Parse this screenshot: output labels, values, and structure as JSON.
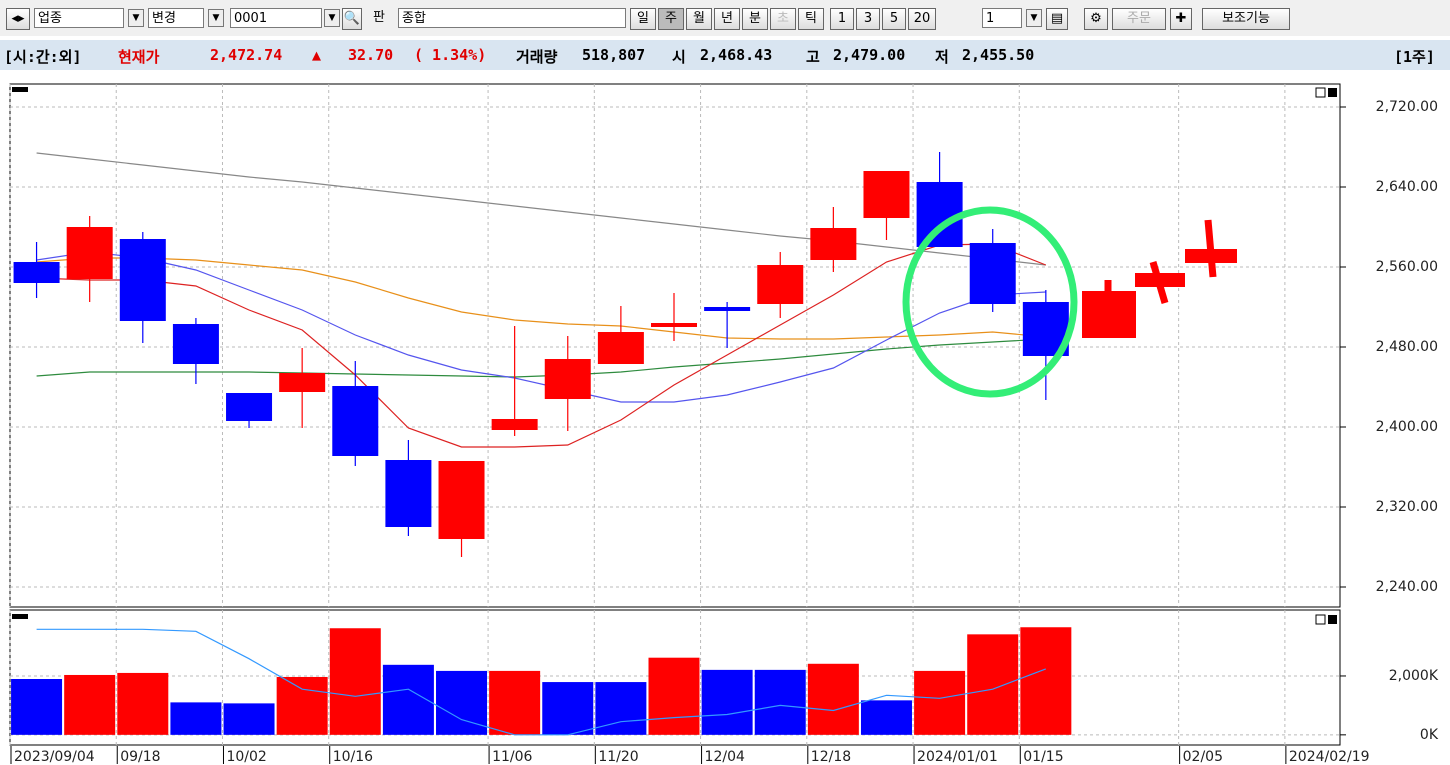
{
  "toolbar": {
    "market": "업종",
    "change": "변경",
    "code": "0001",
    "board": "판",
    "name": "종합",
    "buttons": [
      "일",
      "주",
      "월",
      "년",
      "분",
      "초",
      "틱",
      "1",
      "3",
      "5",
      "20"
    ],
    "period_input": "1",
    "order": "주문",
    "aux": "보조기능"
  },
  "info_bar": {
    "session": "[시:간:외]",
    "price_label": "현재가",
    "price": "2,472.74",
    "arrow": "▲",
    "change": "32.70",
    "change_pct": "( 1.34%)",
    "volume_label": "거래량",
    "volume": "518,807",
    "open_label": "시",
    "open": "2,468.43",
    "high_label": "고",
    "high": "2,479.00",
    "low_label": "저",
    "low": "2,455.50",
    "period": "[1주]"
  },
  "chart_data": [
    {
      "type": "candlestick",
      "up_color": "#ff0000",
      "down_color": "#0000ff",
      "open": [
        2565,
        2548,
        2588,
        2503,
        2434,
        2435,
        2441,
        2367,
        2288,
        2397,
        2428,
        2463,
        2500,
        2520,
        2523,
        2567,
        2609,
        2645,
        2584,
        2525,
        null,
        null,
        null,
        null,
        null
      ],
      "high": [
        2585,
        2611,
        2595,
        2509,
        2434,
        2479,
        2466,
        2387,
        2366,
        2501,
        2491,
        2521,
        2534,
        2525,
        2575,
        2620,
        2656,
        2675,
        2598,
        2537,
        null,
        null,
        null,
        null,
        null
      ],
      "low": [
        2529,
        2525,
        2484,
        2443,
        2399,
        2399,
        2361,
        2291,
        2270,
        2391,
        2396,
        2463,
        2486,
        2479,
        2509,
        2555,
        2587,
        2580,
        2515,
        2427,
        null,
        null,
        null,
        null,
        null
      ],
      "close": [
        2544,
        2600,
        2506,
        2463,
        2406,
        2454,
        2371,
        2300,
        2366,
        2408,
        2468,
        2495,
        2504,
        2516,
        2562,
        2599,
        2656,
        2580,
        2523,
        2471,
        null,
        null,
        null,
        null,
        null
      ],
      "series": [
        {
          "color": "#888888",
          "values": [
            2674,
            2668,
            2662,
            2656,
            2650,
            2645,
            2639,
            2633,
            2627,
            2621,
            2615,
            2609,
            2603,
            2597,
            2591,
            2586,
            2580,
            2574,
            2568,
            2562,
            null,
            null,
            null,
            null,
            null
          ]
        },
        {
          "color": "#2e8b3e",
          "values": [
            2451,
            2455,
            2455,
            2455,
            2455,
            2454,
            2453,
            2452,
            2451,
            2450,
            2452,
            2455,
            2460,
            2464,
            2468,
            2473,
            2478,
            2482,
            2485,
            2488,
            null,
            null,
            null,
            null,
            null
          ]
        },
        {
          "color": "#e8901a",
          "values": [
            2565,
            2569,
            2569,
            2567,
            2562,
            2557,
            2545,
            2529,
            2515,
            2507,
            2503,
            2501,
            2495,
            2489,
            2488,
            2488,
            2490,
            2492,
            2495,
            2490,
            null,
            null,
            null,
            null,
            null
          ]
        },
        {
          "color": "#5555ee",
          "values": [
            2567,
            2575,
            2569,
            2557,
            2537,
            2517,
            2492,
            2472,
            2457,
            2449,
            2437,
            2425,
            2425,
            2432,
            2445,
            2459,
            2487,
            2514,
            2532,
            2535,
            null,
            null,
            null,
            null,
            null
          ]
        },
        {
          "color": "#dd2222",
          "values": [
            2549,
            2547,
            2547,
            2541,
            2517,
            2497,
            2452,
            2399,
            2380,
            2380,
            2382,
            2407,
            2442,
            2472,
            2502,
            2532,
            2565,
            2582,
            2583,
            2562,
            null,
            null,
            null,
            null,
            null
          ]
        }
      ],
      "ylim": [
        2220,
        2743
      ],
      "yticks": [
        {
          "value": 2240,
          "label": "2,240.00"
        },
        {
          "value": 2320,
          "label": "2,320.00"
        },
        {
          "value": 2400,
          "label": "2,400.00"
        },
        {
          "value": 2480,
          "label": "2,480.00"
        },
        {
          "value": 2560,
          "label": "2,560.00"
        },
        {
          "value": 2640,
          "label": "2,640.00"
        },
        {
          "value": 2720,
          "label": "2,720.00"
        }
      ],
      "grid": true
    },
    {
      "type": "bar",
      "categories": [
        "2023/09/04",
        null,
        "09/18",
        null,
        "10/02",
        null,
        "10/16",
        null,
        null,
        "11/06",
        null,
        "11/20",
        null,
        "12/04",
        null,
        "12/18",
        null,
        "2024/01/01",
        null,
        "01/15",
        null,
        null,
        "02/05",
        null,
        "2024/02/19"
      ],
      "values": [
        1897,
        2034,
        2103,
        1103,
        1069,
        1966,
        3621,
        2379,
        2172,
        2172,
        1793,
        1793,
        2621,
        2207,
        2207,
        2414,
        1172,
        2172,
        3414,
        3655,
        null,
        null,
        null,
        null,
        null
      ],
      "colors": [
        "#0000ff",
        "#ff0000",
        "#ff0000",
        "#0000ff",
        "#0000ff",
        "#ff0000",
        "#ff0000",
        "#0000ff",
        "#0000ff",
        "#ff0000",
        "#0000ff",
        "#0000ff",
        "#ff0000",
        "#0000ff",
        "#0000ff",
        "#ff0000",
        "#0000ff",
        "#ff0000",
        "#ff0000",
        "#ff0000",
        null,
        null,
        null,
        null,
        null
      ],
      "series": [
        {
          "color": "#3399ff",
          "values": [
            3586,
            3586,
            3586,
            3517,
            2586,
            1552,
            1310,
            1552,
            517,
            0,
            0,
            448,
            586,
            690,
            1000,
            828,
            1345,
            1241,
            1552,
            2241,
            null,
            null,
            null,
            null,
            null
          ]
        }
      ],
      "ylim": [
        -345,
        4241
      ],
      "yticks": [
        {
          "value": 0,
          "label": "0K"
        },
        {
          "value": 2000,
          "label": "2,000K"
        }
      ],
      "grid": true
    }
  ]
}
